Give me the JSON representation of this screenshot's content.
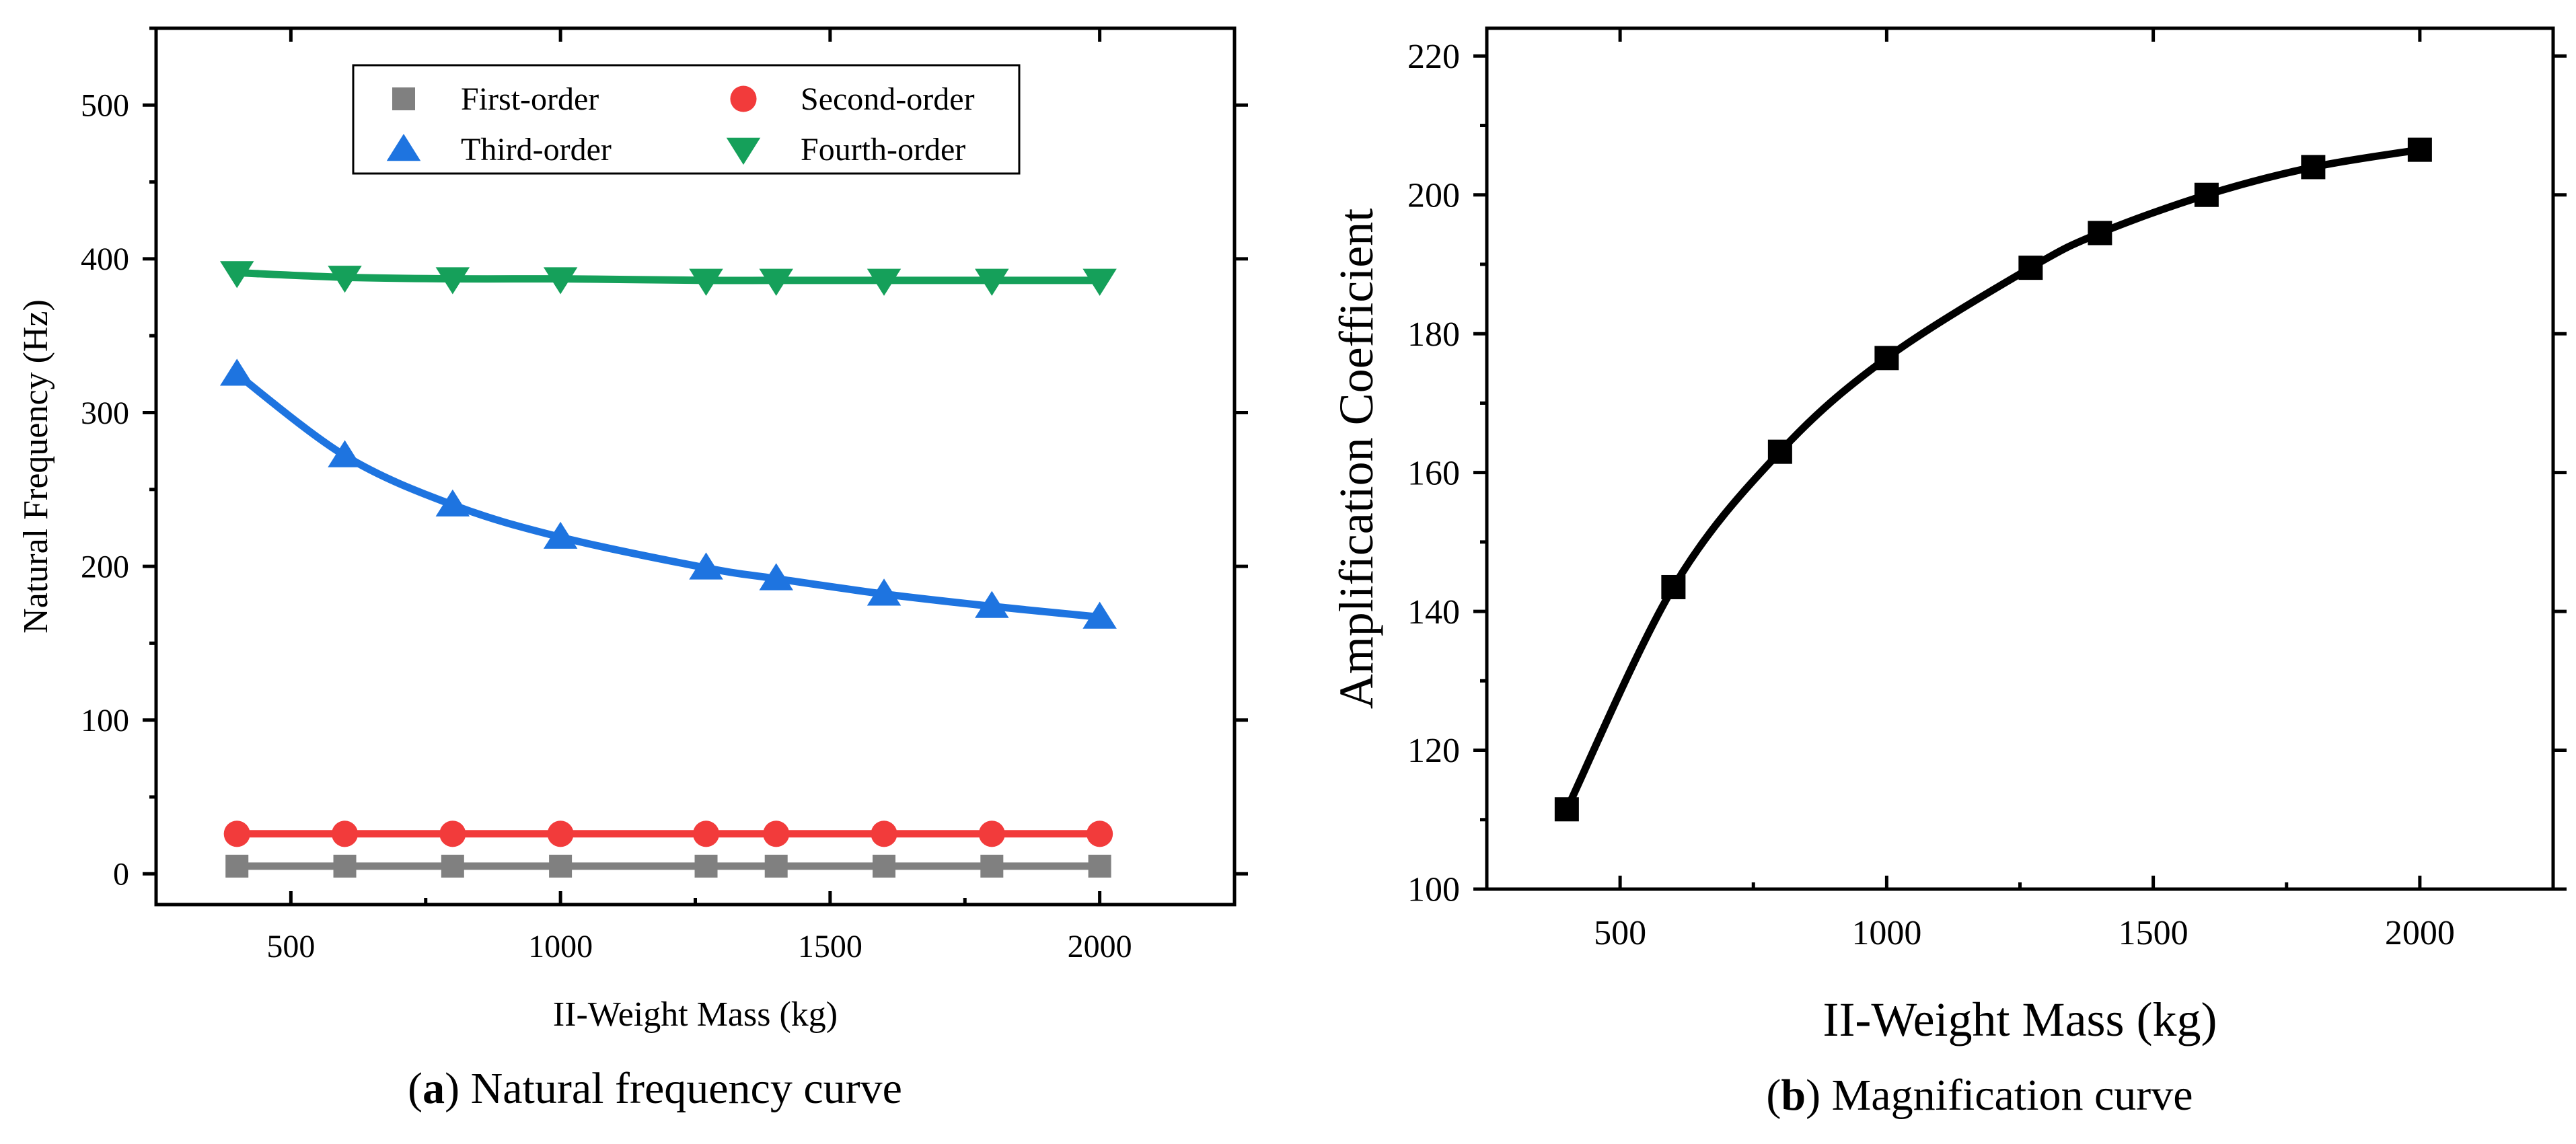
{
  "chart_data": [
    {
      "type": "line",
      "panel": "a",
      "caption_letter": "a",
      "caption_text": "Natural frequency curve",
      "xlabel": "II-Weight Mass (kg)",
      "ylabel": "Natural Frequency (Hz)",
      "xlim": [
        250,
        2250
      ],
      "ylim": [
        -20,
        550
      ],
      "xticks": [
        500,
        1000,
        1500,
        2000
      ],
      "yticks": [
        0,
        100,
        200,
        300,
        400,
        500
      ],
      "x": [
        400,
        600,
        800,
        1000,
        1270,
        1400,
        1600,
        1800,
        2000
      ],
      "series": [
        {
          "name": "First-order",
          "color": "#808080",
          "marker": "square",
          "values": [
            5,
            5,
            5,
            5,
            5,
            5,
            5,
            5,
            5
          ]
        },
        {
          "name": "Second-order",
          "color": "#f23b3b",
          "marker": "circle",
          "values": [
            26,
            26,
            26,
            26,
            26,
            26,
            26,
            26,
            26
          ]
        },
        {
          "name": "Third-order",
          "color": "#1e74e0",
          "marker": "triangle-up",
          "values": [
            325,
            272,
            240,
            219,
            199,
            192,
            182,
            174,
            167
          ]
        },
        {
          "name": "Fourth-order",
          "color": "#15a05a",
          "marker": "triangle-down",
          "values": [
            391,
            388,
            387,
            387,
            386,
            386,
            386,
            386,
            386
          ]
        }
      ],
      "legend": "top-center"
    },
    {
      "type": "line",
      "panel": "b",
      "caption_letter": "b",
      "caption_text": "Magnification curve",
      "xlabel": "II-Weight Mass (kg)",
      "ylabel": "Amplification Coefficient",
      "xlim": [
        250,
        2250
      ],
      "ylim": [
        100,
        224
      ],
      "xticks": [
        500,
        1000,
        1500,
        2000
      ],
      "yticks": [
        100,
        120,
        140,
        160,
        180,
        200,
        220
      ],
      "x": [
        400,
        600,
        800,
        1000,
        1270,
        1400,
        1600,
        1800,
        2000
      ],
      "series": [
        {
          "name": "Amplification Coefficient",
          "color": "#000000",
          "marker": "square",
          "values": [
            111.5,
            143.5,
            163,
            176.5,
            189.5,
            194.5,
            200,
            204,
            206.5
          ]
        }
      ]
    }
  ]
}
